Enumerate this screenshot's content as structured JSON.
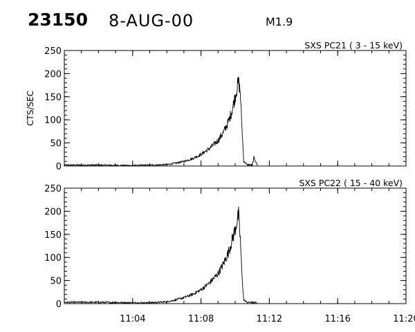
{
  "header": {
    "event_id": "23150",
    "date": "8-AUG-00",
    "flare_class": "M1.9"
  },
  "chart_data": [
    {
      "type": "line",
      "title": "SXS PC21  (  3 - 15 keV)",
      "ylabel": "CTS/SEC",
      "xlabel": "",
      "xlim": [
        "11:00",
        "11:20"
      ],
      "ylim": [
        0,
        250
      ],
      "yticks": [
        0,
        50,
        100,
        150,
        200,
        250
      ],
      "xticks": [
        "11:04",
        "11:08",
        "11:12",
        "11:16",
        "11:20"
      ],
      "series": [
        {
          "x": [
            "11:00",
            "11:02",
            "11:04",
            "11:05",
            "11:06",
            "11:06.5",
            "11:07",
            "11:07.5",
            "11:08",
            "11:08.5",
            "11:09",
            "11:09.3",
            "11:09.6",
            "11:09.8",
            "11:10",
            "11:10.1",
            "11:10.2",
            "11:10.3",
            "11:10.4",
            "11:10.5",
            "11:10.7",
            "11:11",
            "11:11.1",
            "11:11.3"
          ],
          "y": [
            2,
            2,
            1,
            2,
            3,
            6,
            10,
            16,
            25,
            38,
            55,
            72,
            95,
            118,
            150,
            168,
            182,
            160,
            80,
            10,
            3,
            2,
            18,
            2
          ]
        }
      ]
    },
    {
      "type": "line",
      "title": "SXS PC22  ( 15 - 40 keV)",
      "ylabel": "",
      "xlabel": "",
      "xlim": [
        "11:00",
        "11:20"
      ],
      "ylim": [
        0,
        250
      ],
      "yticks": [
        0,
        50,
        100,
        150,
        200,
        250
      ],
      "xticks": [
        "11:04",
        "11:08",
        "11:12",
        "11:16",
        "11:20"
      ],
      "series": [
        {
          "x": [
            "11:00",
            "11:02",
            "11:04",
            "11:05",
            "11:06",
            "11:06.5",
            "11:07",
            "11:07.5",
            "11:08",
            "11:08.5",
            "11:09",
            "11:09.3",
            "11:09.6",
            "11:09.8",
            "11:10",
            "11:10.1",
            "11:10.2",
            "11:10.3",
            "11:10.4",
            "11:10.5",
            "11:10.7",
            "11:11",
            "11:11.3"
          ],
          "y": [
            3,
            3,
            2,
            2,
            4,
            8,
            13,
            20,
            30,
            45,
            65,
            85,
            110,
            135,
            160,
            178,
            192,
            140,
            60,
            8,
            3,
            2,
            2
          ]
        }
      ]
    }
  ]
}
